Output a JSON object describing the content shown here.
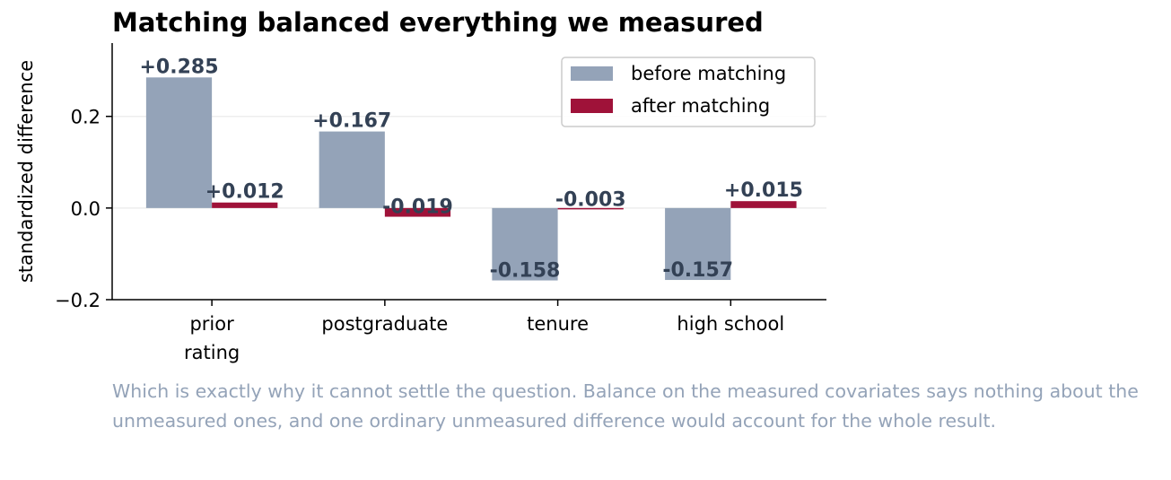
{
  "title": "Matching balanced everything we measured",
  "caption": "Which is exactly why it cannot settle the question. Balance on the measured covariates says nothing about the unmeasured ones, and one ordinary unmeasured difference would account for the whole result.",
  "colors": {
    "before": "#94a3b8",
    "after": "#9f1239",
    "data_label": "#334155",
    "grid": "#eeeeee",
    "caption": "#94a3b8"
  },
  "chart_data": {
    "type": "bar",
    "title": "Matching balanced everything we measured",
    "ylabel": "standardized difference",
    "xlabel": "",
    "categories": [
      "prior\nrating",
      "postgraduate",
      "tenure",
      "high school"
    ],
    "series": [
      {
        "name": "before matching",
        "values": [
          0.285,
          0.167,
          -0.158,
          -0.157
        ],
        "labels": [
          "+0.285",
          "+0.167",
          "-0.158",
          "-0.157"
        ]
      },
      {
        "name": "after matching",
        "values": [
          0.012,
          -0.019,
          -0.003,
          0.015
        ],
        "labels": [
          "+0.012",
          "-0.019",
          "-0.003",
          "+0.015"
        ]
      }
    ],
    "yticks": [
      -0.2,
      0.0,
      0.2
    ],
    "ytick_labels": [
      "−0.2",
      "0.0",
      "0.2"
    ],
    "ylim": [
      -0.2,
      0.36
    ],
    "grid": "horizontal",
    "legend_position": "top-right"
  }
}
